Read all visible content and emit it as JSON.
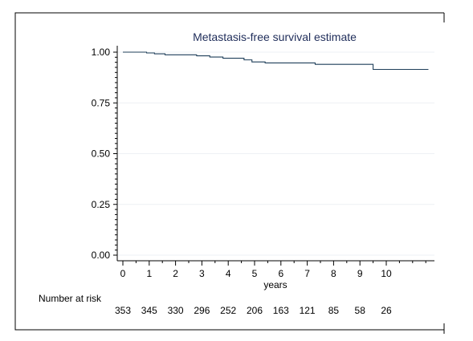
{
  "chart_data": {
    "type": "line",
    "title": "Metastasis-free survival estimate",
    "xlabel": "years",
    "ylabel": "",
    "xlim": [
      0,
      11.8
    ],
    "ylim": [
      0,
      1
    ],
    "x_ticks": [
      0,
      1,
      2,
      3,
      4,
      5,
      6,
      7,
      8,
      9,
      10
    ],
    "x_tick_labels": [
      "0",
      "1",
      "2",
      "3",
      "4",
      "5",
      "6",
      "7",
      "8",
      "9",
      "10"
    ],
    "y_ticks": [
      0,
      0.25,
      0.5,
      0.75,
      1
    ],
    "y_tick_labels": [
      "0.00",
      "0.25",
      "0.50",
      "0.75",
      "1.00"
    ],
    "grid": true,
    "series": [
      {
        "color": "#1f3f5a",
        "step": true,
        "x": [
          0,
          0.9,
          1.2,
          1.6,
          2.8,
          3.3,
          3.8,
          4.6,
          4.9,
          5.4,
          7.3,
          9.5,
          11.6
        ],
        "y": [
          1.0,
          0.996,
          0.992,
          0.987,
          0.982,
          0.976,
          0.97,
          0.962,
          0.952,
          0.947,
          0.94,
          0.915,
          0.915
        ]
      }
    ],
    "risk_table": {
      "label": "Number at risk",
      "times": [
        0,
        1,
        2,
        3,
        4,
        5,
        6,
        7,
        8,
        9,
        10
      ],
      "values": [
        "353",
        "345",
        "330",
        "296",
        "252",
        "206",
        "163",
        "121",
        "85",
        "58",
        "26"
      ]
    }
  }
}
